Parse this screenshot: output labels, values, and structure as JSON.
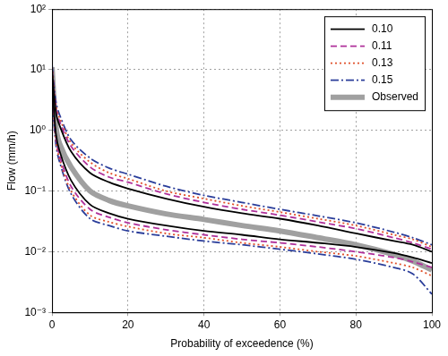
{
  "chart_data": {
    "type": "line",
    "x_label": "Probability of exceedence (%)",
    "y_label": "Flow (mm/h)",
    "log": "y",
    "grid": true,
    "legend": "upper right",
    "xlim": [
      0,
      100
    ],
    "xticks": [
      0,
      20,
      40,
      60,
      80,
      100
    ],
    "ylim": [
      0.001,
      100
    ],
    "yticks": [
      {
        "value": 0.001,
        "label": "10⁻³"
      },
      {
        "value": 0.01,
        "label": "10⁻²"
      },
      {
        "value": 0.1,
        "label": "10⁻¹"
      },
      {
        "value": 1,
        "label": "10⁰"
      },
      {
        "value": 10,
        "label": "10¹"
      },
      {
        "value": 100,
        "label": "10²"
      }
    ],
    "x": [
      0,
      1,
      2,
      5,
      10,
      15,
      20,
      30,
      40,
      50,
      60,
      70,
      80,
      90,
      95,
      100
    ],
    "series": [
      {
        "name": "0.10",
        "color": "#000000",
        "line_style": "solid",
        "values": [
          10,
          2.0,
          1.2,
          0.45,
          0.2,
          0.14,
          0.11,
          0.075,
          0.055,
          0.043,
          0.035,
          0.027,
          0.02,
          0.015,
          0.013,
          0.01
        ],
        "lower": [
          6,
          0.9,
          0.45,
          0.15,
          0.06,
          0.043,
          0.035,
          0.027,
          0.022,
          0.019,
          0.016,
          0.014,
          0.012,
          0.0095,
          0.008,
          0.0065
        ]
      },
      {
        "name": "0.11",
        "color": "#b0309a",
        "line_style": "dashed",
        "values": [
          10,
          2.3,
          1.4,
          0.55,
          0.25,
          0.17,
          0.14,
          0.09,
          0.065,
          0.05,
          0.04,
          0.031,
          0.024,
          0.017,
          0.014,
          0.011
        ],
        "lower": [
          5,
          0.8,
          0.38,
          0.12,
          0.05,
          0.037,
          0.03,
          0.023,
          0.019,
          0.016,
          0.014,
          0.012,
          0.01,
          0.008,
          0.0068,
          0.0055
        ]
      },
      {
        "name": "0.13",
        "color": "#e0502a",
        "line_style": "dotted",
        "values": [
          11,
          2.6,
          1.6,
          0.62,
          0.3,
          0.2,
          0.16,
          0.1,
          0.075,
          0.057,
          0.045,
          0.035,
          0.027,
          0.019,
          0.016,
          0.012
        ],
        "lower": [
          4.5,
          0.7,
          0.33,
          0.1,
          0.04,
          0.031,
          0.026,
          0.02,
          0.017,
          0.014,
          0.012,
          0.01,
          0.0085,
          0.0065,
          0.0055,
          0.004
        ]
      },
      {
        "name": "0.15",
        "color": "#2a3d9a",
        "line_style": "dashdot",
        "values": [
          12,
          3.0,
          1.8,
          0.7,
          0.35,
          0.24,
          0.19,
          0.12,
          0.085,
          0.065,
          0.05,
          0.039,
          0.03,
          0.021,
          0.017,
          0.013
        ],
        "lower": [
          4,
          0.6,
          0.3,
          0.09,
          0.035,
          0.027,
          0.022,
          0.018,
          0.015,
          0.013,
          0.011,
          0.0092,
          0.0075,
          0.0055,
          0.0043,
          0.002
        ]
      },
      {
        "name": "Observed",
        "color": "#a0a0a0",
        "line_style": "thick",
        "values": [
          11,
          1.2,
          0.6,
          0.25,
          0.1,
          0.07,
          0.057,
          0.042,
          0.034,
          0.027,
          0.022,
          0.017,
          0.013,
          0.009,
          0.007,
          0.005
        ]
      }
    ]
  }
}
